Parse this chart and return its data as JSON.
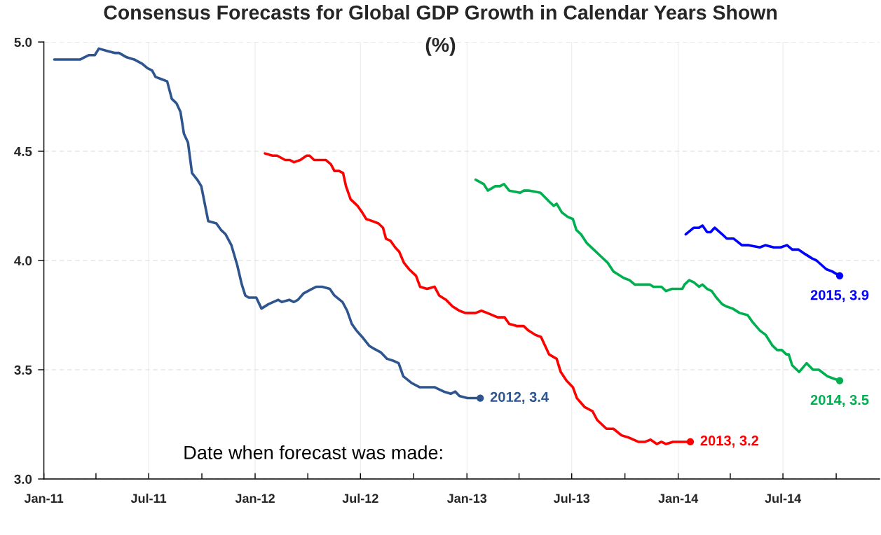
{
  "chart_data": {
    "type": "line",
    "title": "Consensus Forecasts for Global GDP Growth in Calendar Years Shown\n(%)",
    "xlabel": "Date when forecast was made:",
    "xlim": [
      "2011-01-01",
      "2014-12-15"
    ],
    "xticks": [
      {
        "value": "2011-01-01",
        "label": "Jan-11"
      },
      {
        "value": "2011-04-01",
        "label": null
      },
      {
        "value": "2011-07-01",
        "label": "Jul-11"
      },
      {
        "value": "2011-10-01",
        "label": null
      },
      {
        "value": "2012-01-01",
        "label": "Jan-12"
      },
      {
        "value": "2012-04-01",
        "label": null
      },
      {
        "value": "2012-07-01",
        "label": "Jul-12"
      },
      {
        "value": "2012-10-01",
        "label": null
      },
      {
        "value": "2013-01-01",
        "label": "Jan-13"
      },
      {
        "value": "2013-04-01",
        "label": null
      },
      {
        "value": "2013-07-01",
        "label": "Jul-13"
      },
      {
        "value": "2013-10-01",
        "label": null
      },
      {
        "value": "2014-01-01",
        "label": "Jan-14"
      },
      {
        "value": "2014-04-01",
        "label": null
      },
      {
        "value": "2014-07-01",
        "label": "Jul-14"
      },
      {
        "value": "2014-10-01",
        "label": null
      }
    ],
    "ylim": [
      3.0,
      5.0
    ],
    "yticks": [
      {
        "value": 3,
        "label": "3.0"
      },
      3.5,
      {
        "value": 4,
        "label": "4.0"
      },
      4.5,
      {
        "value": 5,
        "label": "5.0"
      }
    ],
    "grid": true,
    "series": [
      {
        "type": "line",
        "color": "#2e558e",
        "x": [
          "2011-01-19",
          "2011-02-03",
          "2011-02-11",
          "2011-03-05",
          "2011-03-12",
          "2011-03-20",
          "2011-03-30",
          "2011-04-06",
          "2011-04-19",
          "2011-05-03",
          "2011-05-11",
          "2011-05-24",
          "2011-06-06",
          "2011-06-20",
          "2011-06-29",
          "2011-07-07",
          "2011-07-13",
          "2011-07-23",
          "2011-08-02",
          "2011-08-10",
          "2011-08-18",
          "2011-08-25",
          "2011-08-31",
          "2011-09-07",
          "2011-09-14",
          "2011-09-23",
          "2011-09-30",
          "2011-10-06",
          "2011-10-12",
          "2011-10-26",
          "2011-11-03",
          "2011-11-11",
          "2011-11-21",
          "2011-12-01",
          "2011-12-09",
          "2011-12-15",
          "2011-12-21",
          "2012-01-03",
          "2012-01-12",
          "2012-01-24",
          "2012-02-10",
          "2012-02-16",
          "2012-02-29",
          "2012-03-08",
          "2012-03-15",
          "2012-03-25",
          "2012-04-08",
          "2012-04-16",
          "2012-04-26",
          "2012-05-09",
          "2012-05-17",
          "2012-05-31",
          "2012-06-08",
          "2012-06-16",
          "2012-06-24",
          "2012-07-04",
          "2012-07-16",
          "2012-07-22",
          "2012-08-05",
          "2012-08-16",
          "2012-08-28",
          "2012-09-05",
          "2012-09-13",
          "2012-09-27",
          "2012-10-11",
          "2012-10-27",
          "2012-11-06",
          "2012-11-14",
          "2012-11-22",
          "2012-12-04",
          "2012-12-12",
          "2012-12-19",
          "2013-01-02",
          "2013-01-14",
          "2013-01-24"
        ],
        "values": [
          4.92,
          4.92,
          4.92,
          4.92,
          4.93,
          4.94,
          4.94,
          4.97,
          4.96,
          4.95,
          4.95,
          4.93,
          4.92,
          4.9,
          4.88,
          4.87,
          4.84,
          4.83,
          4.82,
          4.74,
          4.72,
          4.68,
          4.58,
          4.54,
          4.4,
          4.37,
          4.34,
          4.26,
          4.18,
          4.17,
          4.14,
          4.12,
          4.07,
          3.98,
          3.89,
          3.84,
          3.83,
          3.83,
          3.78,
          3.8,
          3.82,
          3.81,
          3.82,
          3.81,
          3.82,
          3.85,
          3.87,
          3.88,
          3.88,
          3.87,
          3.84,
          3.81,
          3.77,
          3.71,
          3.68,
          3.65,
          3.61,
          3.6,
          3.58,
          3.55,
          3.54,
          3.53,
          3.47,
          3.44,
          3.42,
          3.42,
          3.42,
          3.41,
          3.4,
          3.39,
          3.4,
          3.38,
          3.37,
          3.37,
          3.37
        ]
      },
      {
        "type": "line",
        "color": "#ff0000",
        "x": [
          "2012-01-18",
          "2012-01-31",
          "2012-02-08",
          "2012-02-22",
          "2012-03-01",
          "2012-03-08",
          "2012-03-19",
          "2012-03-30",
          "2012-04-04",
          "2012-04-12",
          "2012-04-20",
          "2012-05-02",
          "2012-05-11",
          "2012-05-17",
          "2012-05-25",
          "2012-06-01",
          "2012-06-06",
          "2012-06-14",
          "2012-06-26",
          "2012-07-04",
          "2012-07-11",
          "2012-07-22",
          "2012-08-01",
          "2012-08-09",
          "2012-08-14",
          "2012-08-22",
          "2012-08-30",
          "2012-09-06",
          "2012-09-14",
          "2012-09-23",
          "2012-10-05",
          "2012-10-12",
          "2012-10-24",
          "2012-11-06",
          "2012-11-14",
          "2012-11-26",
          "2012-12-07",
          "2012-12-13",
          "2012-12-19",
          "2012-12-29",
          "2013-01-16",
          "2013-01-26",
          "2013-02-05",
          "2013-02-23",
          "2013-03-07",
          "2013-03-15",
          "2013-03-28",
          "2013-04-09",
          "2013-04-17",
          "2013-04-29",
          "2013-05-09",
          "2013-05-16",
          "2013-05-23",
          "2013-06-05",
          "2013-06-12",
          "2013-06-22",
          "2013-07-03",
          "2013-07-10",
          "2013-07-23",
          "2013-08-06",
          "2013-08-14",
          "2013-08-30",
          "2013-09-11",
          "2013-09-25",
          "2013-10-07",
          "2013-10-24",
          "2013-11-05",
          "2013-11-14",
          "2013-11-25",
          "2013-12-03",
          "2013-12-11",
          "2013-12-23",
          "2014-01-08",
          "2014-01-22"
        ],
        "values": [
          4.49,
          4.48,
          4.48,
          4.46,
          4.46,
          4.45,
          4.46,
          4.48,
          4.48,
          4.46,
          4.46,
          4.46,
          4.44,
          4.41,
          4.41,
          4.4,
          4.34,
          4.28,
          4.25,
          4.22,
          4.19,
          4.18,
          4.17,
          4.15,
          4.1,
          4.09,
          4.06,
          4.04,
          3.99,
          3.96,
          3.93,
          3.88,
          3.87,
          3.88,
          3.84,
          3.82,
          3.79,
          3.78,
          3.77,
          3.76,
          3.76,
          3.77,
          3.76,
          3.74,
          3.74,
          3.71,
          3.7,
          3.7,
          3.68,
          3.66,
          3.65,
          3.61,
          3.57,
          3.55,
          3.49,
          3.45,
          3.42,
          3.37,
          3.33,
          3.31,
          3.27,
          3.23,
          3.23,
          3.2,
          3.19,
          3.17,
          3.17,
          3.18,
          3.16,
          3.17,
          3.16,
          3.17,
          3.17,
          3.17
        ]
      },
      {
        "type": "line",
        "color": "#00b050",
        "x": [
          "2013-01-16",
          "2013-01-30",
          "2013-02-06",
          "2013-02-19",
          "2013-02-27",
          "2013-03-06",
          "2013-03-15",
          "2013-04-03",
          "2013-04-09",
          "2013-04-19",
          "2013-05-08",
          "2013-05-23",
          "2013-05-31",
          "2013-06-05",
          "2013-06-14",
          "2013-06-24",
          "2013-07-03",
          "2013-07-09",
          "2013-07-17",
          "2013-07-27",
          "2013-08-08",
          "2013-08-20",
          "2013-09-01",
          "2013-09-11",
          "2013-09-17",
          "2013-09-29",
          "2013-10-09",
          "2013-10-18",
          "2013-10-28",
          "2013-11-13",
          "2013-11-19",
          "2013-12-03",
          "2013-12-11",
          "2013-12-21",
          "2014-01-08",
          "2014-01-12",
          "2014-01-20",
          "2014-01-28",
          "2014-02-06",
          "2014-02-12",
          "2014-02-20",
          "2014-02-28",
          "2014-03-08",
          "2014-03-18",
          "2014-03-25",
          "2014-04-05",
          "2014-04-17",
          "2014-05-01",
          "2014-05-09",
          "2014-05-22",
          "2014-06-01",
          "2014-06-13",
          "2014-06-21",
          "2014-06-29",
          "2014-07-07",
          "2014-07-11",
          "2014-07-17",
          "2014-07-29",
          "2014-08-11",
          "2014-08-22",
          "2014-09-01",
          "2014-09-16",
          "2014-09-26",
          "2014-10-07"
        ],
        "values": [
          4.37,
          4.35,
          4.32,
          4.34,
          4.34,
          4.35,
          4.32,
          4.31,
          4.32,
          4.32,
          4.31,
          4.27,
          4.25,
          4.26,
          4.22,
          4.2,
          4.19,
          4.14,
          4.12,
          4.08,
          4.05,
          4.02,
          3.99,
          3.95,
          3.94,
          3.92,
          3.91,
          3.89,
          3.89,
          3.89,
          3.88,
          3.88,
          3.86,
          3.87,
          3.87,
          3.89,
          3.91,
          3.9,
          3.88,
          3.89,
          3.87,
          3.86,
          3.83,
          3.8,
          3.79,
          3.78,
          3.76,
          3.75,
          3.72,
          3.68,
          3.66,
          3.61,
          3.59,
          3.59,
          3.57,
          3.57,
          3.52,
          3.49,
          3.53,
          3.5,
          3.5,
          3.47,
          3.46,
          3.45
        ]
      },
      {
        "type": "line",
        "color": "#0000ff",
        "x": [
          "2014-01-14",
          "2014-01-28",
          "2014-02-06",
          "2014-02-12",
          "2014-02-20",
          "2014-02-26",
          "2014-03-05",
          "2014-03-18",
          "2014-03-26",
          "2014-04-07",
          "2014-04-21",
          "2014-05-03",
          "2014-05-22",
          "2014-06-01",
          "2014-06-15",
          "2014-06-27",
          "2014-07-08",
          "2014-07-17",
          "2014-07-28",
          "2014-08-08",
          "2014-08-20",
          "2014-08-28",
          "2014-09-14",
          "2014-09-24",
          "2014-10-07"
        ],
        "values": [
          4.12,
          4.15,
          4.15,
          4.16,
          4.13,
          4.13,
          4.15,
          4.12,
          4.1,
          4.1,
          4.07,
          4.07,
          4.06,
          4.07,
          4.06,
          4.06,
          4.07,
          4.05,
          4.05,
          4.03,
          4.01,
          4.0,
          3.96,
          3.95,
          3.93
        ]
      },
      {
        "type": "scatter",
        "marker": "circle",
        "x": [
          "2013-01-24",
          "2014-01-22",
          "2014-10-07",
          "2014-10-07"
        ],
        "values": [
          3.37,
          3.17,
          3.45,
          3.93
        ],
        "colors": [
          "#2e558e",
          "#ff0000",
          "#00b050",
          "#0000ff"
        ]
      }
    ],
    "annotations": [
      {
        "text": "2012, 3.4",
        "x": "2013-01-24",
        "y": 3.37
      },
      {
        "text": "2013, 3.2",
        "x": "2014-01-22",
        "y": 3.17
      },
      {
        "text": "2014, 3.5",
        "x": "2014-10-07",
        "y": 3.45
      },
      {
        "text": "2015, 3.9",
        "x": "2014-10-07",
        "y": 3.93
      }
    ]
  }
}
